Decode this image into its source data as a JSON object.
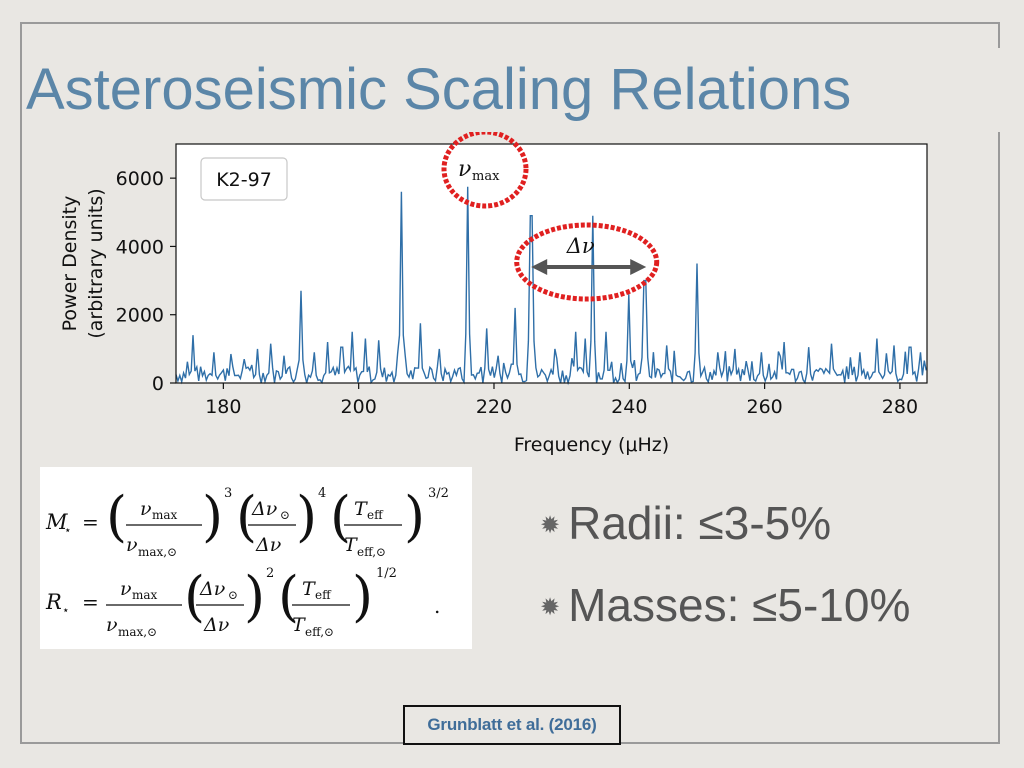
{
  "slide": {
    "title": "Asteroseismic Scaling Relations",
    "bullets": [
      {
        "icon": "asterisk-bullet-icon",
        "text": "Radii: ≤3-5%"
      },
      {
        "icon": "asterisk-bullet-icon",
        "text": "Masses: ≤5-10%"
      }
    ],
    "citation": "Grunblatt et al. (2016)",
    "colors": {
      "title": "#5b86a8",
      "line": "#2f6fa8",
      "highlight": "#e02020",
      "arrow": "#555555",
      "citation": "#3f6d99"
    }
  },
  "equations": {
    "mass_lhs": "M",
    "radius_lhs": "R",
    "star_sub": "⋆",
    "numax": "ν",
    "numax_sub": "max",
    "numax_sun_sub": "max,⊙",
    "dnu_sun": "Δν",
    "dnu_sun_sub": "⊙",
    "dnu": "Δν",
    "teff": "T",
    "teff_sub": "eff",
    "teff_sun_sub": "eff,⊙",
    "mass_exponents": [
      "3",
      "4",
      "3/2"
    ],
    "radius_exponents": [
      "2",
      "1/2"
    ],
    "eq_sign": "=",
    "trailing_dot": "."
  },
  "chart_data": {
    "type": "line",
    "legend_box": "K2-97",
    "xlabel": "Frequency (μHz)",
    "ylabel_lines": [
      "Power Density",
      "(arbitrary units)"
    ],
    "xlim": [
      173,
      284
    ],
    "ylim": [
      0,
      7000
    ],
    "xticks": [
      180,
      200,
      220,
      240,
      260,
      280
    ],
    "yticks": [
      0,
      2000,
      4000,
      6000
    ],
    "annotations": {
      "numax_label": "ν",
      "numax_sub": "max",
      "dnu_label": "Δν",
      "dnu_arrow_x": [
        225.5,
        242.5
      ]
    },
    "peaks": [
      {
        "x": 175.5,
        "y": 1400
      },
      {
        "x": 178.5,
        "y": 900
      },
      {
        "x": 181.0,
        "y": 850
      },
      {
        "x": 183.0,
        "y": 700
      },
      {
        "x": 185.0,
        "y": 1000
      },
      {
        "x": 187.0,
        "y": 1150
      },
      {
        "x": 189.0,
        "y": 800
      },
      {
        "x": 191.5,
        "y": 2700
      },
      {
        "x": 193.5,
        "y": 900
      },
      {
        "x": 195.5,
        "y": 1200
      },
      {
        "x": 197.5,
        "y": 1050
      },
      {
        "x": 199.0,
        "y": 1500
      },
      {
        "x": 201.0,
        "y": 1300
      },
      {
        "x": 203.0,
        "y": 1250
      },
      {
        "x": 206.4,
        "y": 5600
      },
      {
        "x": 209.0,
        "y": 1750
      },
      {
        "x": 212.0,
        "y": 1000
      },
      {
        "x": 216.2,
        "y": 5750
      },
      {
        "x": 219.0,
        "y": 1600
      },
      {
        "x": 220.5,
        "y": 800
      },
      {
        "x": 223.0,
        "y": 2200
      },
      {
        "x": 225.5,
        "y": 4900
      },
      {
        "x": 229.0,
        "y": 1000
      },
      {
        "x": 232.0,
        "y": 1500
      },
      {
        "x": 233.5,
        "y": 1300
      },
      {
        "x": 234.6,
        "y": 4900
      },
      {
        "x": 236.5,
        "y": 1500
      },
      {
        "x": 240.0,
        "y": 2600
      },
      {
        "x": 242.3,
        "y": 3000
      },
      {
        "x": 245.5,
        "y": 1100
      },
      {
        "x": 250.0,
        "y": 3500
      },
      {
        "x": 253.0,
        "y": 900
      },
      {
        "x": 255.5,
        "y": 1000
      },
      {
        "x": 259.5,
        "y": 900
      },
      {
        "x": 263.0,
        "y": 1200
      },
      {
        "x": 266.5,
        "y": 1050
      },
      {
        "x": 270.0,
        "y": 1150
      },
      {
        "x": 274.0,
        "y": 900
      },
      {
        "x": 276.5,
        "y": 1300
      },
      {
        "x": 279.0,
        "y": 1100
      },
      {
        "x": 281.5,
        "y": 1050
      },
      {
        "x": 283.0,
        "y": 900
      }
    ],
    "noise_level": 500,
    "grid": false
  }
}
